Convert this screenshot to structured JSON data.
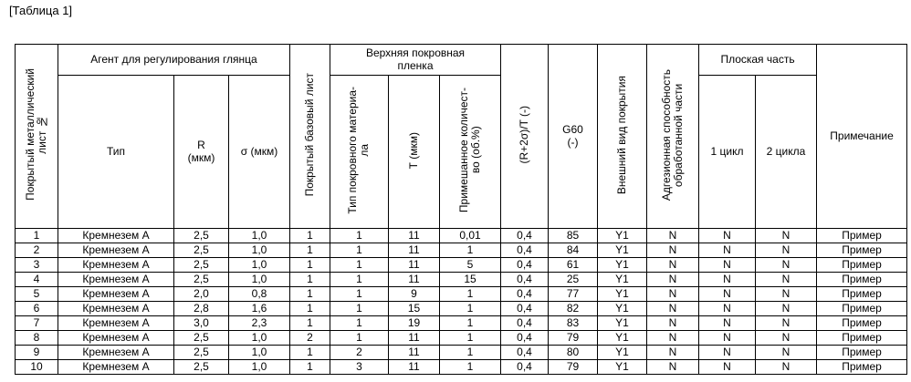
{
  "caption": "[Таблица 1]",
  "headers": {
    "sheet_no": "Покрытый металлический\nлист №",
    "gloss_agent": "Агент для регулирования глянца",
    "type": "Тип",
    "r": "R\n(мкм)",
    "sigma": "σ (мкм)",
    "base_sheet": "Покрытый базовый лист",
    "top_film": "Верхняя покровная\nпленка",
    "material_type": "Тип покровного материа-\nла",
    "t": "Т (мкм)",
    "mixed_amount": "Примешанное количест-\nво (об.%)",
    "ratio": "(R+2σ)/T (-)",
    "g60": "G60\n(-)",
    "appearance": "Внешний вид покрытия",
    "adhesion": "Адгезионная способность\nобработанной части",
    "flat_part": "Плоская часть",
    "cycle1": "1 цикл",
    "cycle2": "2 цикла",
    "note": "Примечание"
  },
  "rows": [
    [
      "1",
      "Кремнезем А",
      "2,5",
      "1,0",
      "1",
      "1",
      "11",
      "0,01",
      "0,4",
      "85",
      "Y1",
      "N",
      "N",
      "N",
      "Пример"
    ],
    [
      "2",
      "Кремнезем А",
      "2,5",
      "1,0",
      "1",
      "1",
      "11",
      "1",
      "0,4",
      "84",
      "Y1",
      "N",
      "N",
      "N",
      "Пример"
    ],
    [
      "3",
      "Кремнезем А",
      "2,5",
      "1,0",
      "1",
      "1",
      "11",
      "5",
      "0,4",
      "61",
      "Y1",
      "N",
      "N",
      "N",
      "Пример"
    ],
    [
      "4",
      "Кремнезем А",
      "2,5",
      "1,0",
      "1",
      "1",
      "11",
      "15",
      "0,4",
      "25",
      "Y1",
      "N",
      "N",
      "N",
      "Пример"
    ],
    [
      "5",
      "Кремнезем А",
      "2,0",
      "0,8",
      "1",
      "1",
      "9",
      "1",
      "0,4",
      "77",
      "Y1",
      "N",
      "N",
      "N",
      "Пример"
    ],
    [
      "6",
      "Кремнезем А",
      "2,8",
      "1,6",
      "1",
      "1",
      "15",
      "1",
      "0,4",
      "82",
      "Y1",
      "N",
      "N",
      "N",
      "Пример"
    ],
    [
      "7",
      "Кремнезем А",
      "3,0",
      "2,3",
      "1",
      "1",
      "19",
      "1",
      "0,4",
      "83",
      "Y1",
      "N",
      "N",
      "N",
      "Пример"
    ],
    [
      "8",
      "Кремнезем А",
      "2,5",
      "1,0",
      "2",
      "1",
      "11",
      "1",
      "0,4",
      "79",
      "Y1",
      "N",
      "N",
      "N",
      "Пример"
    ],
    [
      "9",
      "Кремнезем А",
      "2,5",
      "1,0",
      "1",
      "2",
      "11",
      "1",
      "0,4",
      "80",
      "Y1",
      "N",
      "N",
      "N",
      "Пример"
    ],
    [
      "10",
      "Кремнезем А",
      "2,5",
      "1,0",
      "1",
      "3",
      "11",
      "1",
      "0,4",
      "79",
      "Y1",
      "N",
      "N",
      "N",
      "Пример"
    ]
  ]
}
